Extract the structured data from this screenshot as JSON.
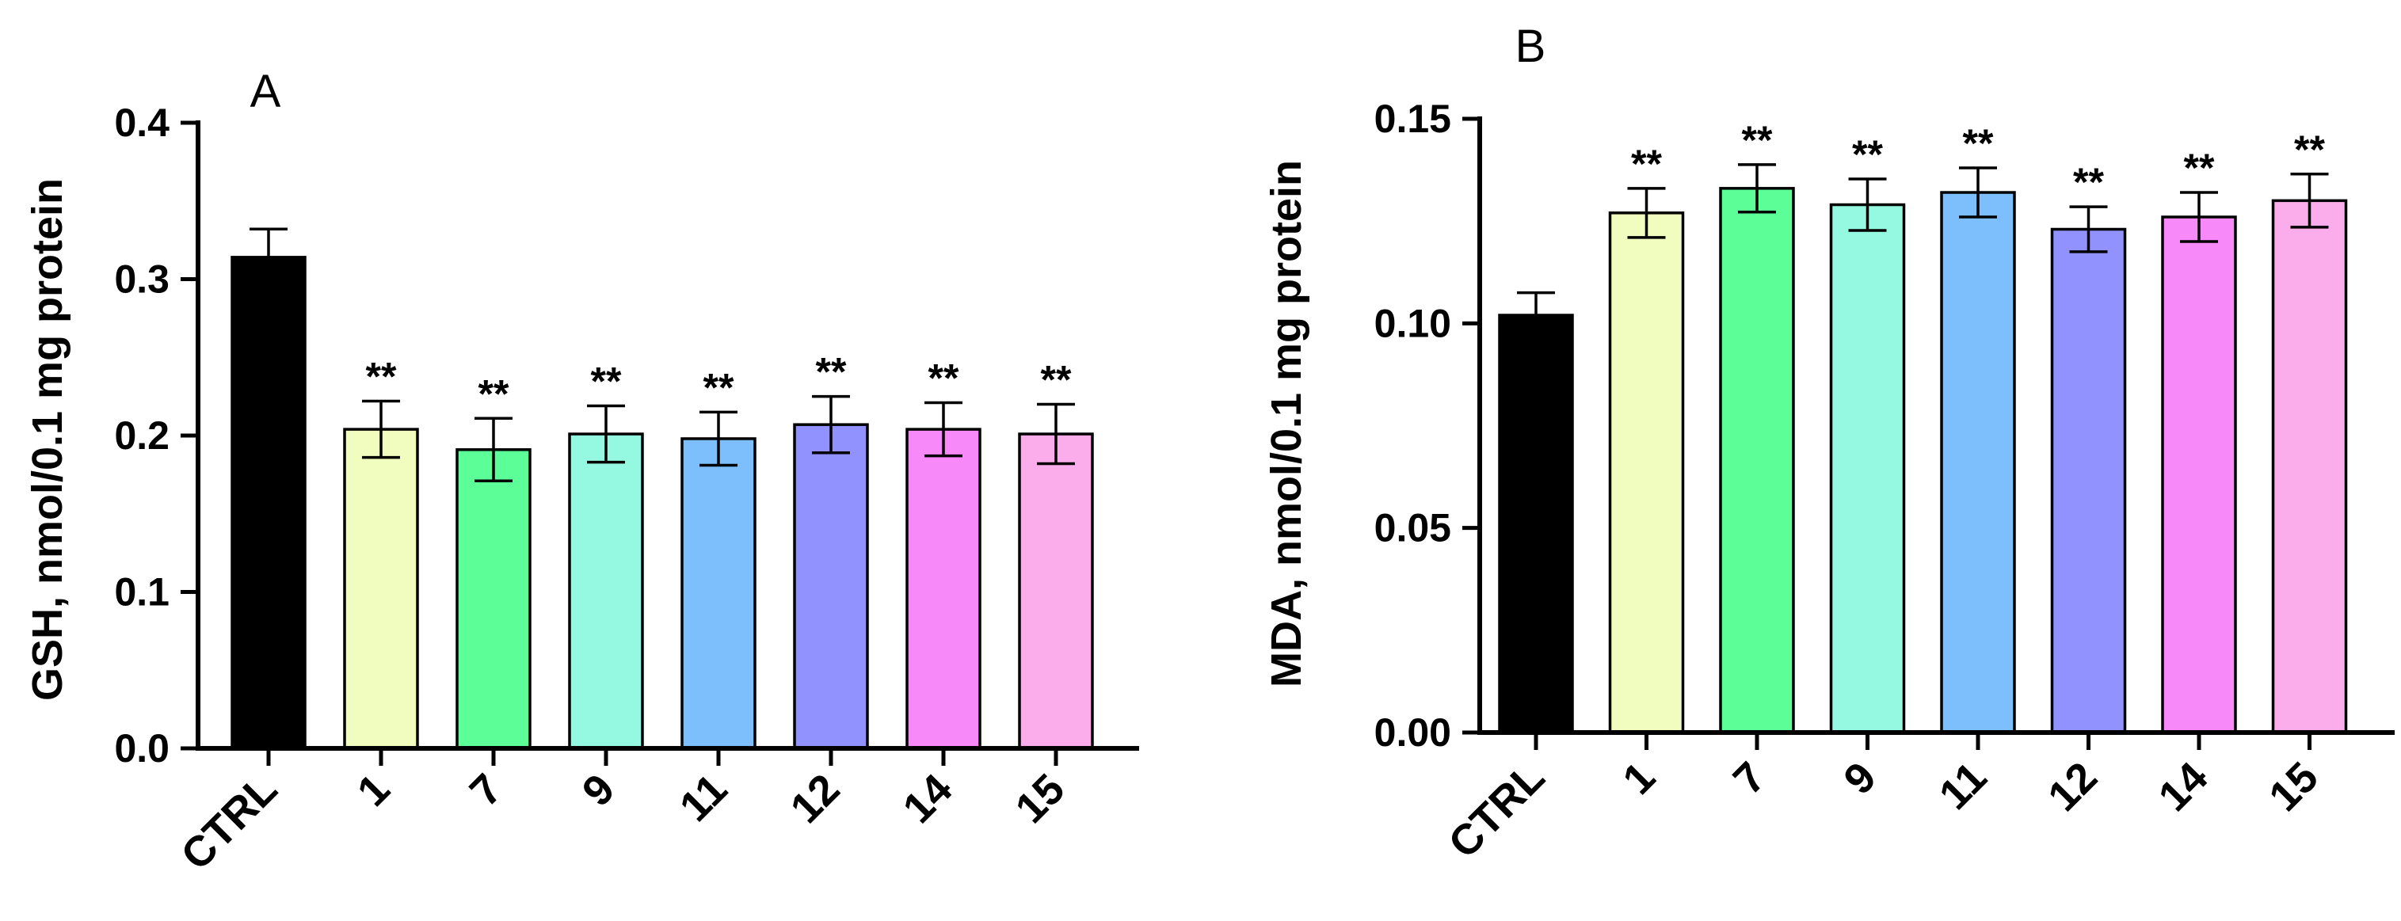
{
  "chart_data": [
    {
      "type": "bar",
      "title": "A",
      "xlabel": "",
      "ylabel": "GSH, nmol/0.1 mg protein",
      "ylim": [
        0,
        0.4
      ],
      "yticks": [
        "0.0",
        "0.1",
        "0.2",
        "0.3",
        "0.4"
      ],
      "categories": [
        "CTRL",
        "1",
        "7",
        "9",
        "11",
        "12",
        "14",
        "15"
      ],
      "values": [
        0.314,
        0.204,
        0.191,
        0.201,
        0.198,
        0.207,
        0.204,
        0.201
      ],
      "errors": [
        0.018,
        0.018,
        0.02,
        0.018,
        0.017,
        0.018,
        0.017,
        0.019
      ],
      "significance": [
        "",
        "**",
        "**",
        "**",
        "**",
        "**",
        "**",
        "**"
      ],
      "colors": [
        "#000000",
        "#F0FDBE",
        "#5BFE97",
        "#95F9E1",
        "#7CBFFC",
        "#9192FE",
        "#F78AF8",
        "#FBACEB"
      ]
    },
    {
      "type": "bar",
      "title": "B",
      "xlabel": "",
      "ylabel": "MDA, nmol/0.1 mg protein",
      "ylim": [
        0,
        0.15
      ],
      "yticks": [
        "0.00",
        "0.05",
        "0.10",
        "0.15"
      ],
      "categories": [
        "CTRL",
        "1",
        "7",
        "9",
        "11",
        "12",
        "14",
        "15"
      ],
      "values": [
        0.102,
        0.127,
        0.133,
        0.129,
        0.132,
        0.123,
        0.126,
        0.13
      ],
      "errors": [
        0.0055,
        0.006,
        0.0058,
        0.0063,
        0.006,
        0.0055,
        0.006,
        0.0065
      ],
      "significance": [
        "",
        "**",
        "**",
        "**",
        "**",
        "**",
        "**",
        "**"
      ],
      "colors": [
        "#000000",
        "#F0FDBE",
        "#5BFE97",
        "#95F9E1",
        "#7CBFFC",
        "#9192FE",
        "#F78AF8",
        "#FBACEB"
      ]
    }
  ]
}
